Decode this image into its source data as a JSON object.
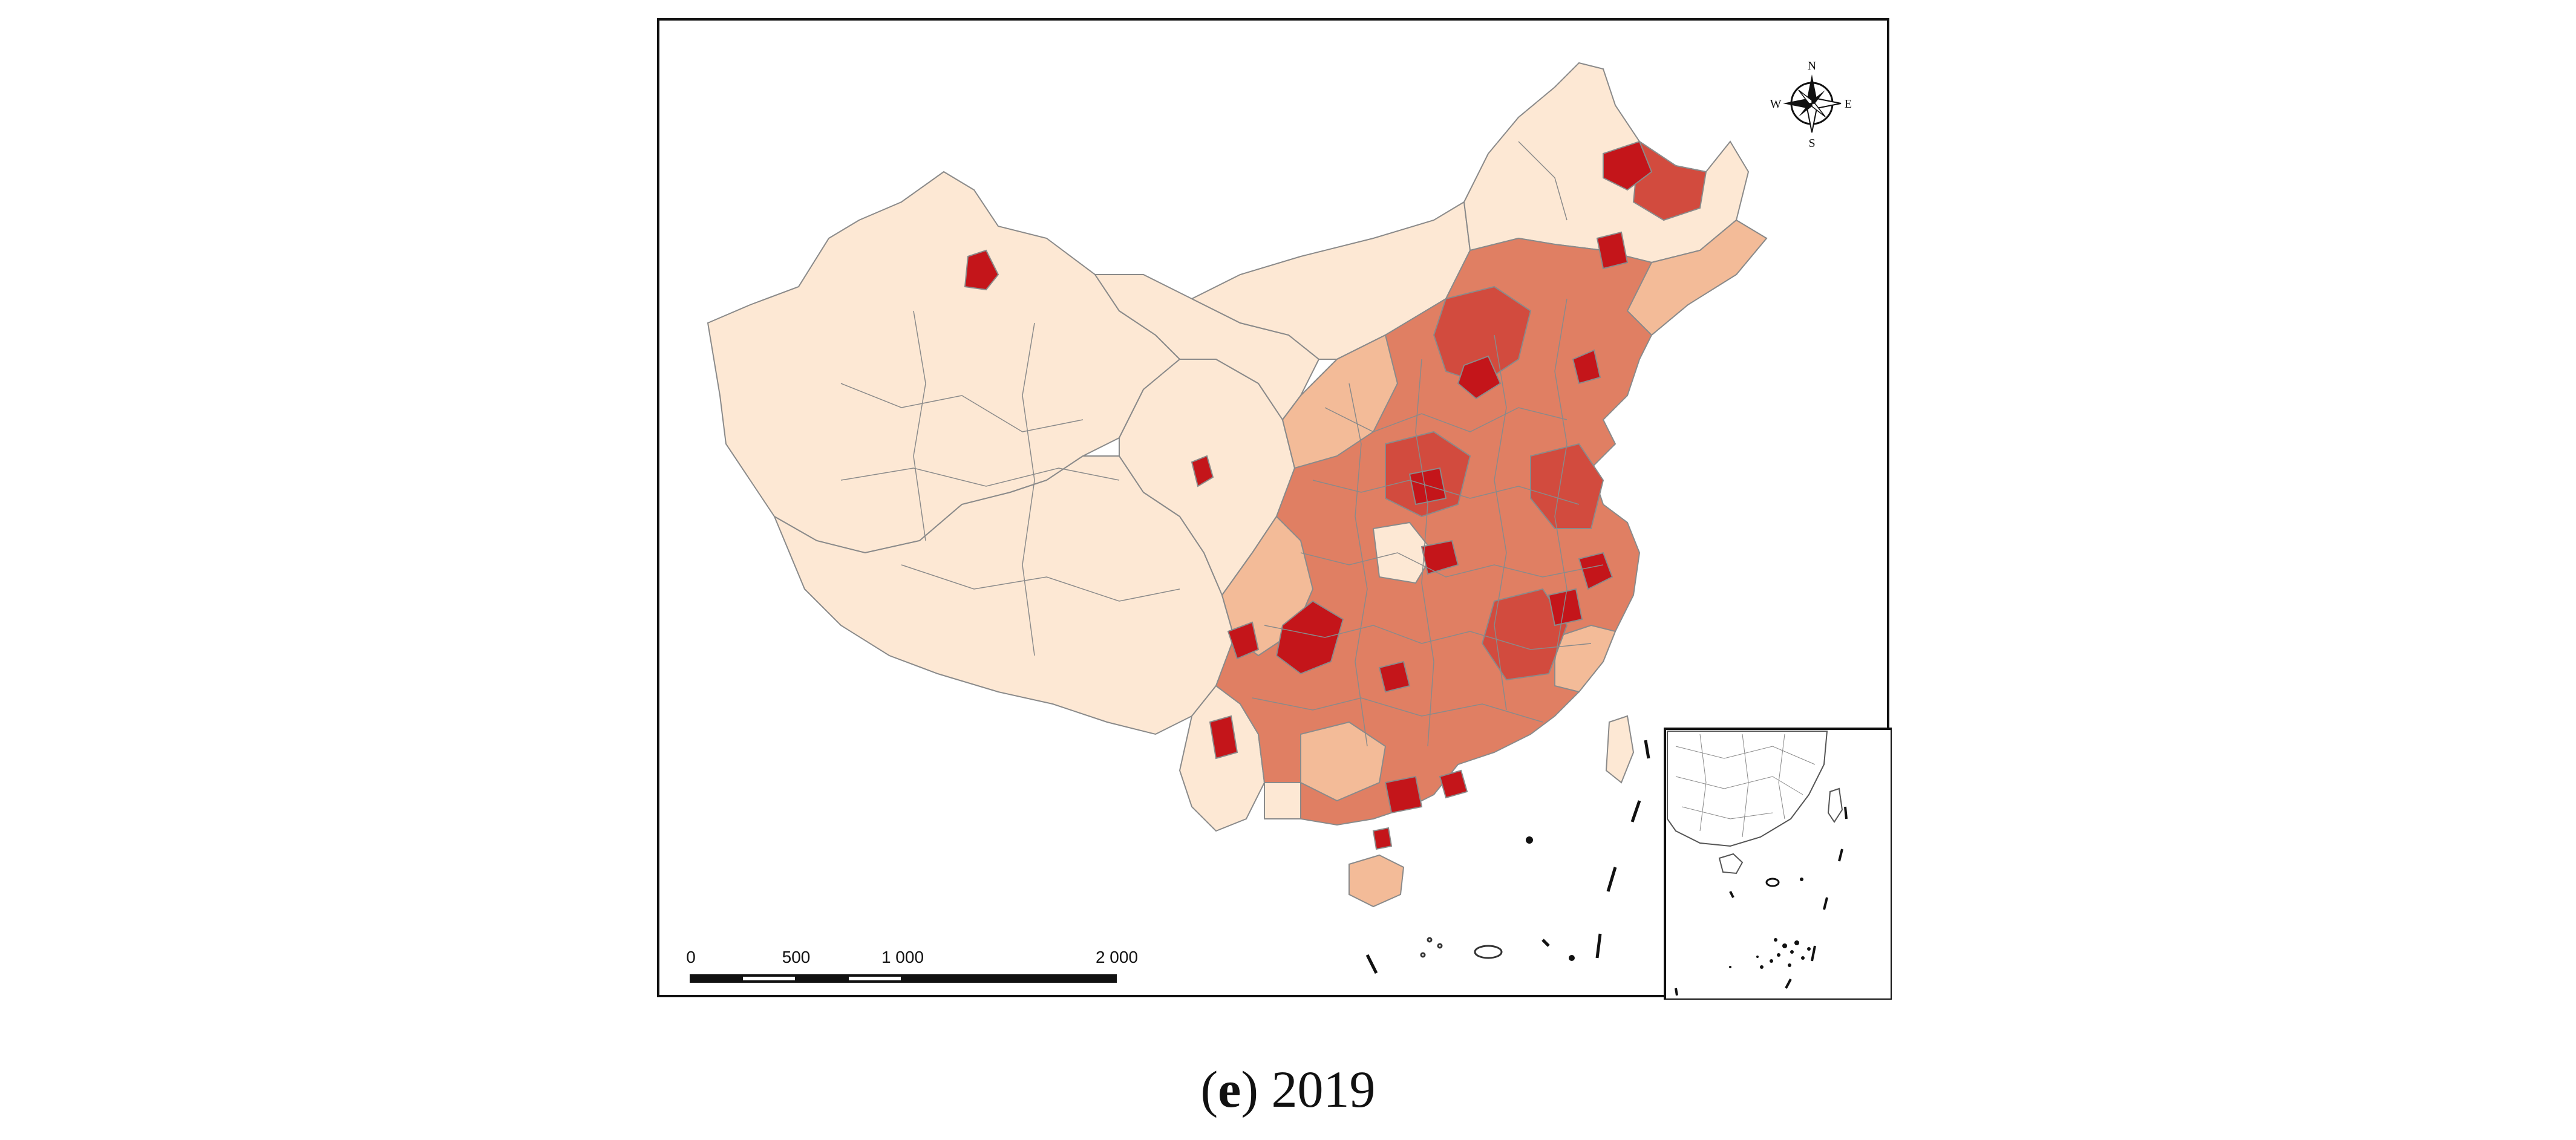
{
  "colors": {
    "class_1": "#fde8d4",
    "class_2": "#f3bb98",
    "class_3": "#e07f63",
    "class_4": "#d24b3e",
    "class_5": "#c4151a",
    "border": "#8a8a8a",
    "frame": "#111111"
  },
  "compass": {
    "north": "N",
    "south": "S",
    "east": "E",
    "west": "W"
  },
  "scale_bar": {
    "labels": [
      "0",
      "500",
      "1 000",
      "2 000"
    ]
  },
  "caption": {
    "letter": "e",
    "year": "2019"
  }
}
